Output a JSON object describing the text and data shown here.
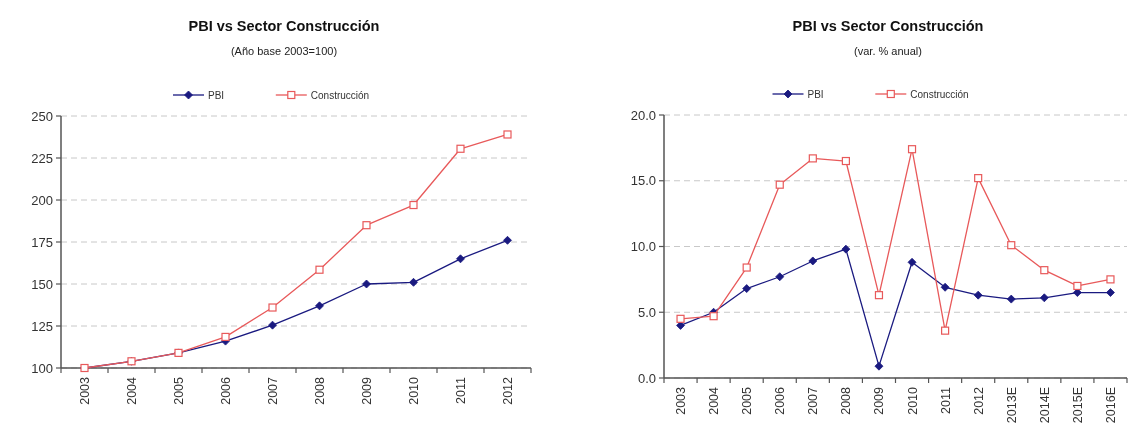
{
  "chart_data": [
    {
      "type": "line",
      "title": "PBI vs Sector Construcción",
      "subtitle": "(Año base 2003=100)",
      "categories": [
        "2003",
        "2004",
        "2005",
        "2006",
        "2007",
        "2008",
        "2009",
        "2010",
        "2011",
        "2012"
      ],
      "series": [
        {
          "name": "PBI",
          "color": "#1a1a80",
          "marker": "diamond",
          "values": [
            100,
            104,
            109,
            116,
            125.5,
            137,
            150,
            151,
            165,
            176
          ]
        },
        {
          "name": "Construcción",
          "color": "#e8595a",
          "marker": "square",
          "values": [
            100,
            104,
            109,
            118.5,
            136,
            158.5,
            185,
            197,
            230.5,
            239
          ]
        }
      ],
      "ylim": [
        100,
        250
      ],
      "yticks": [
        100,
        125,
        150,
        175,
        200,
        225,
        250
      ],
      "grid": "y",
      "legend": "top"
    },
    {
      "type": "line",
      "title": "PBI vs Sector Construcción",
      "subtitle": "(var. % anual)",
      "categories": [
        "2003",
        "2004",
        "2005",
        "2006",
        "2007",
        "2008",
        "2009",
        "2010",
        "2011",
        "2012",
        "2013E",
        "2014E",
        "2015E",
        "2016E"
      ],
      "series": [
        {
          "name": "PBI",
          "color": "#1a1a80",
          "marker": "diamond",
          "values": [
            4.0,
            5.0,
            6.8,
            7.7,
            8.9,
            9.8,
            0.9,
            8.8,
            6.9,
            6.3,
            6.0,
            6.1,
            6.5,
            6.5
          ]
        },
        {
          "name": "Construcción",
          "color": "#e8595a",
          "marker": "square",
          "values": [
            4.5,
            4.7,
            8.4,
            14.7,
            16.7,
            16.5,
            6.3,
            17.4,
            3.6,
            15.2,
            10.1,
            8.2,
            7.0,
            7.5
          ]
        }
      ],
      "ylim": [
        0,
        20
      ],
      "yticks": [
        {
          "value": 0,
          "label": "0.0"
        },
        {
          "value": 5,
          "label": "5.0"
        },
        {
          "value": 10,
          "label": "10.0"
        },
        {
          "value": 15,
          "label": "15.0"
        },
        {
          "value": 20,
          "label": "20.0"
        }
      ],
      "grid": "y",
      "legend": "top"
    }
  ]
}
